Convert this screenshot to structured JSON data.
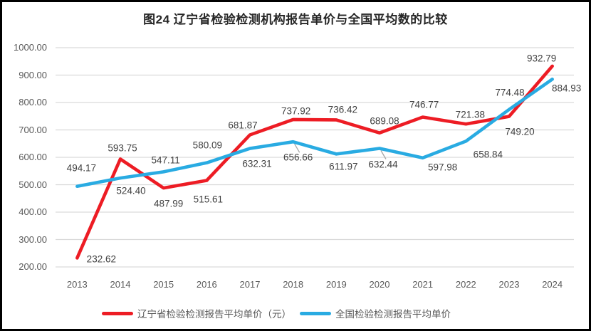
{
  "chart_data": {
    "type": "line",
    "title": "图24 辽宁省检验检测机构报告单价与全国平均数的比较",
    "categories": [
      "2013",
      "2014",
      "2015",
      "2016",
      "2017",
      "2018",
      "2019",
      "2020",
      "2021",
      "2022",
      "2023",
      "2024"
    ],
    "series": [
      {
        "name": "辽宁省检验检测报告平均单价（元）",
        "color": "#ed1c24",
        "values": [
          232.62,
          593.75,
          487.99,
          515.61,
          681.87,
          737.92,
          736.42,
          689.08,
          746.77,
          721.38,
          749.2,
          932.79
        ],
        "value_labels": [
          "232.62",
          "593.75",
          "487.99",
          "515.61",
          "681.87",
          "737.92",
          "736.42",
          "689.08",
          "746.77",
          "721.38",
          "749.20",
          "932.79"
        ]
      },
      {
        "name": "全国检验检测报告平均单价",
        "color": "#29abe2",
        "values": [
          494.17,
          524.4,
          547.11,
          580.09,
          632.31,
          656.66,
          611.97,
          632.44,
          597.98,
          658.84,
          774.48,
          884.93
        ],
        "value_labels": [
          "494.17",
          "524.40",
          "547.11",
          "580.09",
          "632.31",
          "656.66",
          "611.97",
          "632.44",
          "597.98",
          "658.84",
          "774.48",
          "884.93"
        ]
      }
    ],
    "y_axis": {
      "min": 200,
      "max": 1000,
      "step": 100,
      "tick_labels": [
        "1000.00",
        "900.00",
        "800.00",
        "700.00",
        "600.00",
        "500.00",
        "400.00",
        "300.00",
        "200.00"
      ]
    },
    "xlabel": "",
    "ylabel": "",
    "grid": "horizontal",
    "legend_position": "bottom"
  },
  "colors": {
    "gridline": "#d9d9d9",
    "axis_text": "#595959",
    "data_label_text": "#404040",
    "leader_line": "#a6a6a6",
    "frame_border": "#000000",
    "background": "#ffffff"
  }
}
